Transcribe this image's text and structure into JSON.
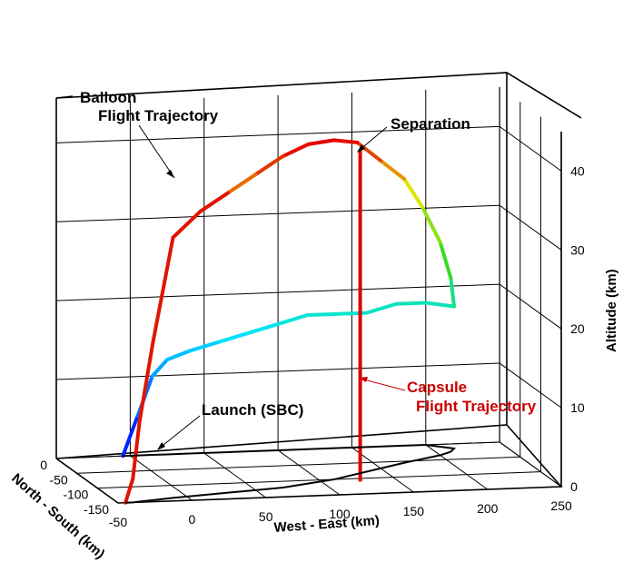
{
  "chart_data": {
    "type": "line",
    "dimensions": "3d",
    "axes": {
      "x": {
        "label": "West - East (km)",
        "range": [
          -50,
          250
        ],
        "ticks": [
          -50,
          0,
          50,
          100,
          150,
          200,
          250
        ]
      },
      "y": {
        "label": "North - South (km)",
        "range": [
          -150,
          0
        ],
        "ticks": [
          0,
          -50,
          -100,
          -150
        ]
      },
      "z": {
        "label": "Altitude (km)",
        "range": [
          0,
          45
        ],
        "ticks": [
          0,
          10,
          20,
          30,
          40
        ]
      }
    },
    "grid": true,
    "colorscale": "altitude (blue low → red high)",
    "series": [
      {
        "key": "balloon",
        "x": [
          -5,
          5,
          15,
          25,
          40,
          60,
          80,
          100,
          120,
          140,
          160,
          180,
          200,
          215,
          210,
          200,
          185,
          170,
          150,
          130,
          110,
          90,
          70,
          50,
          30,
          10,
          -10,
          -25,
          -35,
          -40,
          -45
        ],
        "y": [
          0,
          0,
          0,
          0,
          0,
          0,
          0,
          0,
          0,
          0,
          0,
          0,
          0,
          -15,
          -25,
          -35,
          -45,
          -55,
          -70,
          -85,
          -100,
          -110,
          -120,
          -125,
          -130,
          -135,
          -140,
          -145,
          -148,
          -150,
          -150
        ],
        "z": [
          0,
          5,
          10,
          12,
          13,
          14,
          15,
          16,
          17,
          17,
          17,
          18,
          18,
          18,
          22,
          27,
          32,
          36,
          39,
          42,
          43,
          43,
          42,
          40,
          38,
          36,
          33,
          20,
          10,
          3,
          0
        ]
      },
      {
        "key": "capsule",
        "x": [
          125,
          125,
          125,
          125,
          125,
          125
        ],
        "y": [
          -110,
          -110,
          -110,
          -110,
          -110,
          -110
        ],
        "z": [
          42,
          33,
          24,
          15,
          7,
          0
        ]
      }
    ],
    "annotations": [
      {
        "text": "Balloon",
        "color": "#000000"
      },
      {
        "text": "Flight Trajectory",
        "color": "#000000"
      },
      {
        "text": "Separation",
        "color": "#000000"
      },
      {
        "text": "Launch (SBC)",
        "color": "#000000"
      },
      {
        "text": "Capsule",
        "color": "#cc0000"
      },
      {
        "text": "Flight Trajectory",
        "color": "#cc0000"
      }
    ]
  }
}
